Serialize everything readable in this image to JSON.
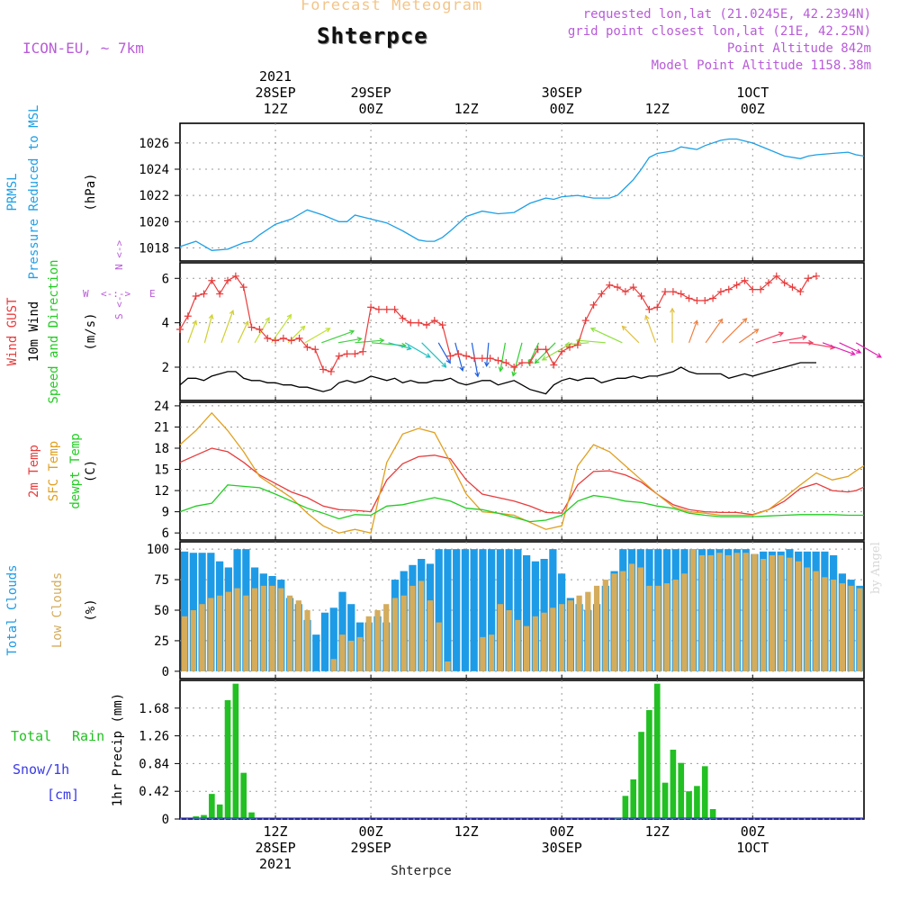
{
  "header": {
    "title": "Forecast Meteogram",
    "location": "Shterpce",
    "model": "ICON-EU, ~ 7km",
    "requested": "requested lon,lat (21.0245E, 42.2394N)",
    "grid_point": "grid point closest lon,lat (21E, 42.25N)",
    "point_altitude": "Point Altitude 842m",
    "model_altitude": "Model Point Altitude 1158.38m",
    "watermark": "by Angel"
  },
  "time_axis": {
    "top_labels": [
      {
        "h": 12,
        "lines": [
          "2021",
          "28SEP",
          "12Z"
        ]
      },
      {
        "h": 24,
        "lines": [
          "29SEP",
          "00Z"
        ]
      },
      {
        "h": 36,
        "lines": [
          "12Z"
        ]
      },
      {
        "h": 48,
        "lines": [
          "30SEP",
          "00Z"
        ]
      },
      {
        "h": 60,
        "lines": [
          "12Z"
        ]
      },
      {
        "h": 72,
        "lines": [
          "1OCT",
          "00Z"
        ]
      }
    ],
    "bottom_labels": [
      {
        "h": 12,
        "lines": [
          "12Z",
          "28SEP",
          "2021"
        ]
      },
      {
        "h": 24,
        "lines": [
          "00Z",
          "29SEP"
        ]
      },
      {
        "h": 36,
        "lines": [
          "12Z"
        ]
      },
      {
        "h": 48,
        "lines": [
          "00Z",
          "30SEP"
        ]
      },
      {
        "h": 60,
        "lines": [
          "12Z"
        ]
      },
      {
        "h": 72,
        "lines": [
          "00Z",
          "1OCT"
        ]
      }
    ],
    "footer": "Shterpce"
  },
  "colors": {
    "pressure": "#1ea0e6",
    "gust": "#e83c3c",
    "wind": "#000000",
    "temp": "#e83c3c",
    "sfc_temp": "#e0a020",
    "dewpt": "#22cc22",
    "total_clouds": "#1e9be6",
    "low_clouds": "#d4ac5c",
    "rain": "#22c022",
    "snow": "#3a3ae6",
    "label_purple": "#b85bd8"
  },
  "chart_data": [
    {
      "type": "line",
      "ylabels": [
        "PRMSL",
        "Pressure Reduced to MSL"
      ],
      "unit": "(hPa)",
      "yticks": [
        1018,
        1020,
        1022,
        1024,
        1026
      ],
      "ylim": [
        1017,
        1027.5
      ],
      "series": [
        {
          "name": "PRMSL",
          "x": [
            0,
            2,
            4,
            6,
            8,
            9,
            10,
            12,
            14,
            16,
            18,
            20,
            21,
            22,
            24,
            26,
            28,
            30,
            31,
            32,
            33,
            34,
            36,
            38,
            40,
            42,
            44,
            46,
            47,
            48,
            50,
            52,
            54,
            55,
            56,
            57,
            58,
            59,
            60,
            61,
            62,
            63,
            64,
            65,
            66,
            68,
            69,
            70,
            72,
            74,
            76,
            78,
            79,
            80,
            82,
            84,
            85,
            86
          ],
          "values": [
            1018.1,
            1018.5,
            1017.8,
            1017.9,
            1018.4,
            1018.5,
            1019.0,
            1019.8,
            1020.2,
            1020.9,
            1020.5,
            1020.0,
            1020.0,
            1020.5,
            1020.2,
            1019.9,
            1019.3,
            1018.6,
            1018.5,
            1018.5,
            1018.8,
            1019.3,
            1020.4,
            1020.8,
            1020.6,
            1020.7,
            1021.4,
            1021.8,
            1021.7,
            1021.9,
            1022.0,
            1021.8,
            1021.8,
            1022.0,
            1022.6,
            1023.2,
            1024.0,
            1024.9,
            1025.2,
            1025.3,
            1025.4,
            1025.7,
            1025.6,
            1025.5,
            1025.8,
            1026.2,
            1026.3,
            1026.3,
            1026.0,
            1025.5,
            1025.0,
            1024.8,
            1025.0,
            1025.1,
            1025.2,
            1025.3,
            1025.1,
            1025.0
          ]
        }
      ]
    },
    {
      "type": "line",
      "ylabels": [
        "Wind GUST",
        "10m Wind",
        "Speed and Direction"
      ],
      "unit": "(m/s)",
      "compass": [
        "N",
        "W",
        "E",
        "S"
      ],
      "yticks": [
        2,
        4,
        6
      ],
      "ylim": [
        0.5,
        6.7
      ],
      "series": [
        {
          "name": "Wind GUST",
          "marker": "plus",
          "values": [
            3.7,
            4.3,
            5.2,
            5.3,
            5.9,
            5.3,
            5.9,
            6.1,
            5.6,
            3.8,
            3.7,
            3.3,
            3.2,
            3.3,
            3.2,
            3.3,
            2.9,
            2.8,
            1.9,
            1.8,
            2.5,
            2.6,
            2.6,
            2.7,
            4.7,
            4.6,
            4.6,
            4.6,
            4.2,
            4.0,
            4.0,
            3.9,
            4.1,
            3.9,
            2.5,
            2.6,
            2.5,
            2.4,
            2.4,
            2.4,
            2.3,
            2.2,
            2.0,
            2.2,
            2.2,
            2.8,
            2.8,
            2.1,
            2.7,
            2.9,
            3.0,
            4.1,
            4.8,
            5.3,
            5.7,
            5.6,
            5.4,
            5.6,
            5.2,
            4.6,
            4.7,
            5.4,
            5.4,
            5.3,
            5.1,
            5.0,
            5.0,
            5.1,
            5.4,
            5.5,
            5.7,
            5.9,
            5.5,
            5.5,
            5.8,
            6.1,
            5.8,
            5.6,
            5.4,
            6.0,
            6.1
          ]
        },
        {
          "name": "10m Wind",
          "values": [
            1.2,
            1.5,
            1.5,
            1.4,
            1.6,
            1.7,
            1.8,
            1.8,
            1.5,
            1.4,
            1.4,
            1.3,
            1.3,
            1.2,
            1.2,
            1.1,
            1.1,
            1.0,
            0.9,
            1.0,
            1.3,
            1.4,
            1.3,
            1.4,
            1.6,
            1.5,
            1.4,
            1.5,
            1.3,
            1.4,
            1.3,
            1.3,
            1.4,
            1.4,
            1.5,
            1.3,
            1.2,
            1.3,
            1.4,
            1.4,
            1.2,
            1.3,
            1.4,
            1.2,
            1.0,
            0.9,
            0.8,
            1.2,
            1.4,
            1.5,
            1.4,
            1.5,
            1.5,
            1.3,
            1.4,
            1.5,
            1.5,
            1.6,
            1.5,
            1.6,
            1.6,
            1.7,
            1.8,
            2.0,
            1.8,
            1.7,
            1.7,
            1.7,
            1.7,
            1.5,
            1.6,
            1.7,
            1.6,
            1.7,
            1.8,
            1.9,
            2.0,
            2.1,
            2.2,
            2.2,
            2.2
          ]
        }
      ],
      "arrows": {
        "dir_deg": [
          200,
          195,
          200,
          205,
          210,
          215,
          225,
          240,
          250,
          260,
          265,
          275,
          285,
          300,
          315,
          330,
          345,
          350,
          5,
          10,
          15,
          25,
          45,
          60,
          85,
          95,
          115,
          135,
          160,
          180,
          200,
          215,
          225,
          235,
          250,
          260,
          270,
          280,
          290,
          295,
          300
        ]
      }
    },
    {
      "type": "line",
      "ylabels": [
        "2m Temp",
        "SFC Temp",
        "dewpt Temp"
      ],
      "unit": "(C)",
      "yticks": [
        6,
        9,
        12,
        15,
        18,
        21,
        24
      ],
      "ylim": [
        5,
        24.5
      ],
      "series": [
        {
          "name": "2m Temp",
          "x": [
            0,
            2,
            4,
            6,
            8,
            10,
            12,
            14,
            16,
            18,
            20,
            22,
            24,
            26,
            28,
            30,
            32,
            34,
            36,
            38,
            40,
            42,
            44,
            46,
            48,
            50,
            52,
            54,
            56,
            58,
            60,
            62,
            64,
            66,
            68,
            70,
            72,
            74,
            76,
            78,
            80,
            82,
            84,
            85,
            86
          ],
          "values": [
            16.0,
            17.0,
            18.0,
            17.5,
            16.0,
            14.2,
            13.0,
            11.8,
            11.0,
            9.8,
            9.3,
            9.2,
            9.0,
            13.5,
            15.8,
            16.8,
            17.0,
            16.5,
            13.5,
            11.5,
            11.0,
            10.5,
            9.8,
            8.9,
            8.8,
            12.8,
            14.7,
            14.8,
            14.2,
            13.2,
            11.5,
            10.0,
            9.3,
            9.0,
            8.9,
            8.9,
            8.6,
            9.3,
            10.5,
            12.3,
            13.0,
            12.0,
            11.8,
            12.0,
            12.5
          ]
        },
        {
          "name": "SFC Temp",
          "x": [
            0,
            2,
            4,
            6,
            8,
            10,
            12,
            14,
            16,
            18,
            20,
            22,
            24,
            26,
            28,
            30,
            32,
            34,
            36,
            38,
            40,
            42,
            44,
            46,
            48,
            50,
            52,
            54,
            56,
            58,
            60,
            62,
            64,
            66,
            68,
            70,
            72,
            74,
            76,
            78,
            80,
            82,
            84,
            85,
            86
          ],
          "values": [
            18.5,
            20.5,
            23.0,
            20.5,
            17.5,
            14.0,
            12.5,
            11.0,
            8.8,
            7.0,
            6.0,
            6.5,
            6.0,
            16.0,
            20.0,
            20.8,
            20.2,
            16.0,
            11.5,
            9.0,
            8.8,
            8.5,
            7.5,
            6.5,
            7.0,
            15.5,
            18.5,
            17.5,
            15.5,
            13.5,
            11.5,
            9.7,
            9.0,
            8.8,
            8.5,
            8.5,
            8.5,
            9.3,
            11.0,
            12.8,
            14.5,
            13.5,
            14.0,
            14.8,
            15.5
          ]
        },
        {
          "name": "dewpt Temp",
          "x": [
            0,
            2,
            4,
            6,
            8,
            10,
            12,
            14,
            16,
            18,
            20,
            22,
            24,
            26,
            28,
            30,
            32,
            34,
            36,
            38,
            40,
            42,
            44,
            46,
            48,
            50,
            52,
            54,
            56,
            58,
            60,
            62,
            64,
            66,
            68,
            70,
            72,
            74,
            76,
            78,
            80,
            82,
            84,
            85,
            86
          ],
          "values": [
            9.0,
            9.8,
            10.2,
            12.8,
            12.6,
            12.4,
            11.5,
            10.5,
            9.5,
            8.8,
            8.0,
            8.6,
            8.5,
            9.8,
            10.0,
            10.5,
            11.0,
            10.5,
            9.5,
            9.3,
            8.8,
            8.2,
            7.6,
            7.8,
            8.5,
            10.5,
            11.3,
            11.0,
            10.5,
            10.3,
            9.8,
            9.5,
            8.8,
            8.5,
            8.3,
            8.3,
            8.3,
            8.4,
            8.5,
            8.6,
            8.6,
            8.6,
            8.5,
            8.5,
            8.5
          ]
        }
      ]
    },
    {
      "type": "bar",
      "ylabels": [
        "Total Clouds",
        "Low Clouds"
      ],
      "unit": "(%)",
      "yticks": [
        0,
        25,
        50,
        75,
        100
      ],
      "ylim": [
        -6,
        106
      ],
      "series": [
        {
          "name": "Total Clouds",
          "values": [
            98,
            97,
            97,
            97,
            90,
            85,
            100,
            100,
            85,
            80,
            78,
            75,
            60,
            55,
            42,
            30,
            48,
            52,
            65,
            55,
            40,
            40,
            45,
            40,
            75,
            82,
            87,
            92,
            88,
            100,
            100,
            100,
            100,
            100,
            100,
            100,
            100,
            100,
            100,
            95,
            90,
            92,
            100,
            80,
            60,
            55,
            50,
            55,
            70,
            82,
            100,
            100,
            100,
            100,
            100,
            100,
            100,
            100,
            100,
            100,
            100,
            100,
            100,
            100,
            100,
            96,
            98,
            98,
            98,
            100,
            98,
            98,
            98,
            98,
            95,
            80,
            75,
            70
          ]
        },
        {
          "name": "Low Clouds",
          "values": [
            45,
            50,
            55,
            60,
            62,
            65,
            68,
            62,
            68,
            70,
            70,
            68,
            62,
            58,
            50,
            0,
            0,
            10,
            30,
            25,
            28,
            45,
            50,
            55,
            60,
            62,
            70,
            74,
            58,
            40,
            8,
            0,
            0,
            0,
            28,
            30,
            55,
            50,
            42,
            37,
            45,
            48,
            52,
            55,
            58,
            62,
            65,
            70,
            75,
            80,
            82,
            88,
            85,
            70,
            70,
            72,
            75,
            80,
            100,
            95,
            95,
            97,
            95,
            97,
            97,
            96,
            92,
            95,
            95,
            93,
            90,
            85,
            82,
            77,
            75,
            72,
            70,
            68
          ]
        }
      ]
    },
    {
      "type": "bar",
      "ylabels": [
        "Total",
        "Rain",
        "Snow/1h",
        "[cm]"
      ],
      "unit": "1hr Precip (mm)",
      "yticks": [
        0,
        0.42,
        0.84,
        1.26,
        1.68
      ],
      "ylim": [
        0,
        2.1
      ],
      "series": [
        {
          "name": "Rain",
          "x": [
            2,
            3,
            4,
            5,
            6,
            7,
            8,
            9,
            10,
            55,
            56,
            57,
            58,
            59,
            60,
            61,
            62,
            63,
            64,
            65,
            66,
            67,
            68
          ],
          "values": [
            0.04,
            0.06,
            0.38,
            0.22,
            1.8,
            2.05,
            0.7,
            0.1,
            0.0,
            0.02,
            0.35,
            0.6,
            1.32,
            1.65,
            2.05,
            0.55,
            1.05,
            0.85,
            0.42,
            0.5,
            0.8,
            0.15,
            0.0
          ]
        }
      ]
    }
  ]
}
